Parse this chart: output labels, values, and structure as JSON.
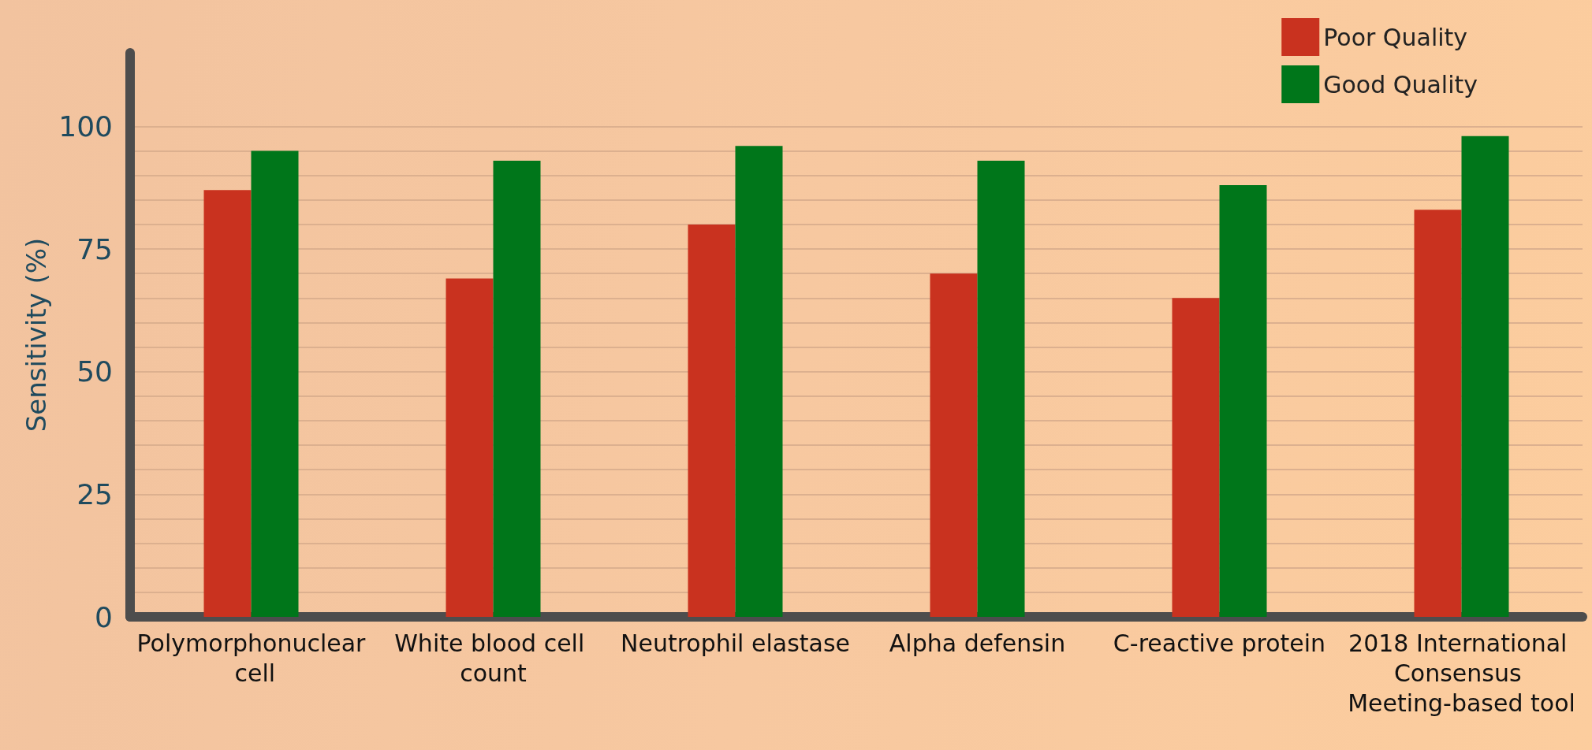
{
  "chart_data": {
    "type": "bar",
    "ylabel": "Sensitivity (%)",
    "categories": [
      "Polymorphonuclear cell",
      "White blood cell count",
      "Neutrophil elastase",
      "Alpha defensin",
      "C-reactive protein",
      "2018 International Consensus Meeting-based tool"
    ],
    "series": [
      {
        "name": "Poor Quality",
        "color": "#c9321f",
        "values": [
          87,
          69,
          80,
          70,
          65,
          83
        ]
      },
      {
        "name": "Good Quality",
        "color": "#00761a",
        "values": [
          95,
          93,
          96,
          93,
          88,
          98
        ]
      }
    ],
    "ylim": [
      0,
      115
    ],
    "yticks": [
      0,
      {
        "value": 5,
        "label": null
      },
      {
        "value": 10,
        "label": null
      },
      {
        "value": 15,
        "label": null
      },
      {
        "value": 20,
        "label": null
      },
      25,
      {
        "value": 30,
        "label": null
      },
      {
        "value": 35,
        "label": null
      },
      {
        "value": 40,
        "label": null
      },
      {
        "value": 45,
        "label": null
      },
      50,
      {
        "value": 55,
        "label": null
      },
      {
        "value": 60,
        "label": null
      },
      {
        "value": 65,
        "label": null
      },
      {
        "value": 70,
        "label": null
      },
      75,
      {
        "value": 80,
        "label": null
      },
      {
        "value": 85,
        "label": null
      },
      {
        "value": 90,
        "label": null
      },
      {
        "value": 95,
        "label": null
      },
      100
    ],
    "grid": "y",
    "legend": "top right"
  }
}
